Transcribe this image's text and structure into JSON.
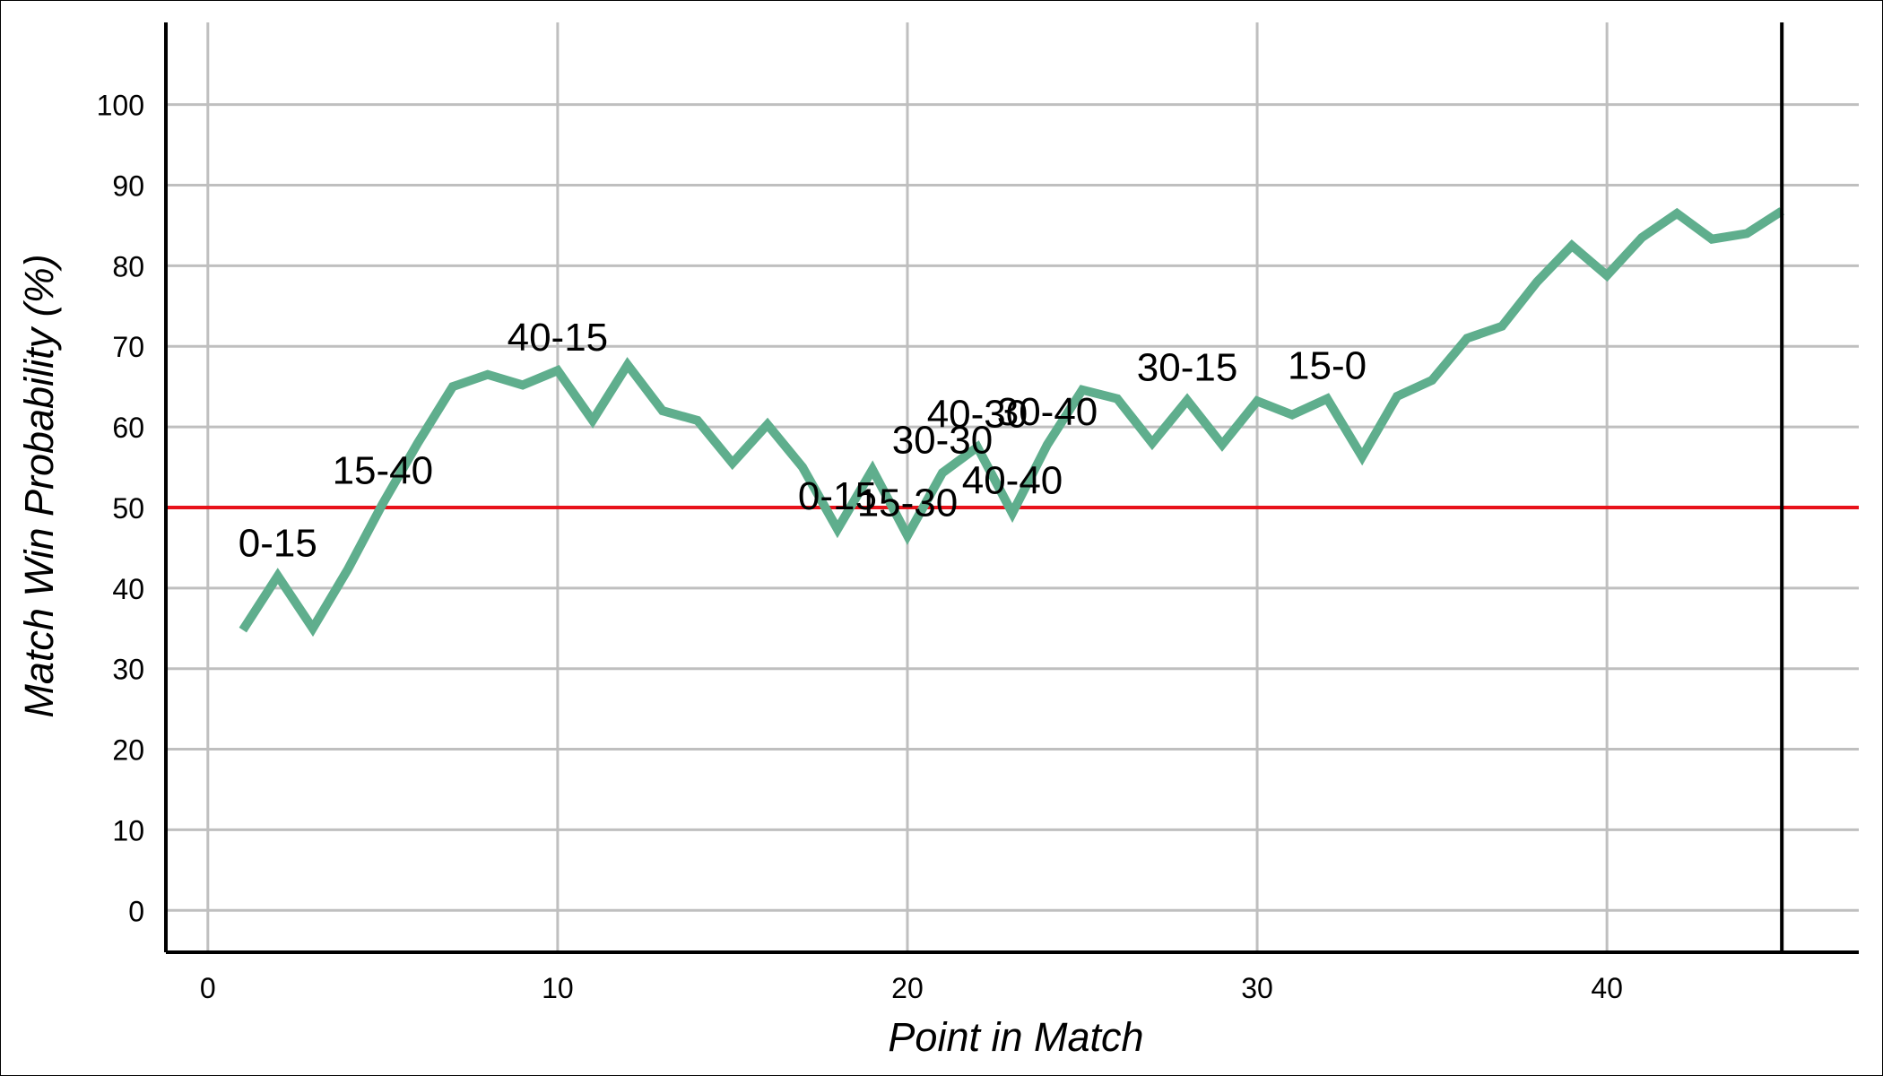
{
  "chart_data": {
    "type": "line",
    "title": "",
    "xlabel": "Point in Match",
    "ylabel": "Match Win Probability (%)",
    "xlim": [
      -1.2,
      47.2
    ],
    "ylim": [
      -5.2,
      110.2
    ],
    "xticks": [
      0,
      10,
      20,
      30,
      40
    ],
    "yticks": [
      0,
      10,
      20,
      30,
      40,
      50,
      60,
      70,
      80,
      90,
      100
    ],
    "grid": true,
    "threshold": 50,
    "end_marker_x": 45,
    "series": [
      {
        "x": [
          1,
          2,
          3,
          4,
          5,
          6,
          7,
          8,
          9,
          10,
          11,
          12,
          13,
          14,
          15,
          16,
          17,
          18,
          19,
          20,
          21,
          22,
          23,
          24,
          25,
          26,
          27,
          28,
          29,
          30,
          31,
          32,
          33,
          34,
          35,
          36,
          37,
          38,
          39,
          40,
          41,
          42,
          43,
          44,
          45
        ],
        "values": [
          34.8,
          41.5,
          35.0,
          42.3,
          50.5,
          58.0,
          65.0,
          66.5,
          65.2,
          67.0,
          60.8,
          67.7,
          62.0,
          60.8,
          55.5,
          60.3,
          55.0,
          47.3,
          54.7,
          46.5,
          54.3,
          57.5,
          49.3,
          57.8,
          64.6,
          63.5,
          58.0,
          63.3,
          57.8,
          63.2,
          61.5,
          63.5,
          56.3,
          63.8,
          65.8,
          71.0,
          72.5,
          78.0,
          82.5,
          78.8,
          83.5,
          86.5,
          83.3,
          84.0,
          86.8
        ]
      }
    ],
    "annotations": [
      {
        "text": "0-15",
        "x": 2,
        "y": 41.5
      },
      {
        "text": "15-40",
        "x": 5,
        "y": 50.5
      },
      {
        "text": "40-15",
        "x": 10,
        "y": 67.0
      },
      {
        "text": "0-15",
        "x": 18,
        "y": 47.3
      },
      {
        "text": "15-30",
        "x": 20,
        "y": 46.5
      },
      {
        "text": "30-30",
        "x": 21,
        "y": 54.3
      },
      {
        "text": "40-30",
        "x": 22,
        "y": 57.5
      },
      {
        "text": "40-40",
        "x": 23,
        "y": 49.3
      },
      {
        "text": "30-40",
        "x": 24,
        "y": 57.8
      },
      {
        "text": "30-15",
        "x": 28,
        "y": 63.3
      },
      {
        "text": "15-0",
        "x": 32,
        "y": 63.5
      }
    ],
    "colors": {
      "line": "#5fae8d",
      "threshold": "#e8121a",
      "grid": "#bfbfbf",
      "axis": "#000000"
    }
  }
}
